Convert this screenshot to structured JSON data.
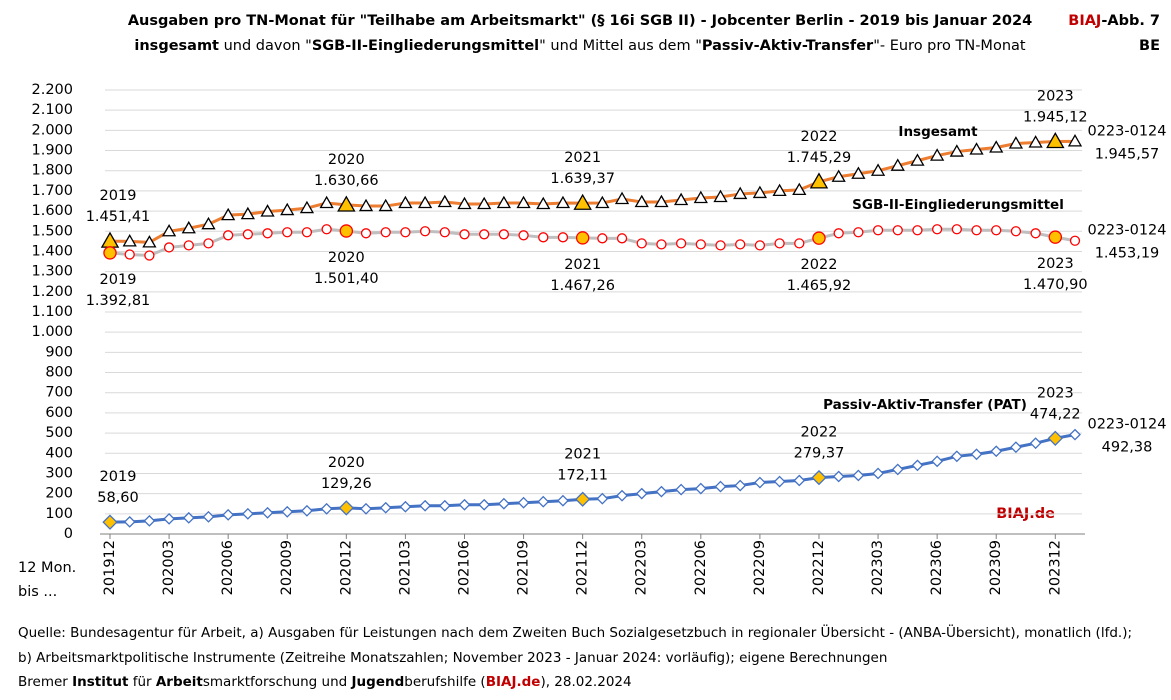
{
  "chart_data": {
    "type": "line",
    "title": "Ausgaben pro TN-Monat für \"Teilhabe am Arbeitsmarkt\" (§ 16i SGB II) - Jobcenter Berlin - 2019 bis Januar 2024",
    "subtitle": [
      {
        "text": "insgesamt",
        "bold": true
      },
      {
        "text": " und davon \"",
        "bold": false
      },
      {
        "text": "SGB-II-Eingliederungsmittel",
        "bold": true
      },
      {
        "text": "\" und Mittel aus dem \"",
        "bold": false
      },
      {
        "text": "Passiv-Aktiv-Transfer",
        "bold": true
      },
      {
        "text": "\"- Euro pro TN-Monat",
        "bold": false
      }
    ],
    "corner": [
      {
        "text": "BIAJ",
        "color": "#c00000"
      },
      {
        "text": "-Abb. 7",
        "color": "#000000"
      }
    ],
    "corner2": "BE",
    "brand": "BIAJ.de",
    "x_label": [
      "12 Mon.",
      "bis ..."
    ],
    "footer": [
      "Quelle: Bundesagentur für Arbeit, a) Ausgaben für Leistungen nach dem Zweiten Buch Sozialgesetzbuch in regionaler Übersicht - (ANBA-Übersicht), monatlich (lfd.);",
      "b) Arbeitsmarktpolitische Instrumente  (Zeitreihe Monatszahlen; November 2023 - Januar 2024: vorläufig); eigene Berechnungen"
    ],
    "footer3": [
      {
        "text": "Bremer ",
        "bold": false,
        "color": "#000000"
      },
      {
        "text": "Institut",
        "bold": true,
        "color": "#000000"
      },
      {
        "text": " für ",
        "bold": false,
        "color": "#000000"
      },
      {
        "text": "Arbeit",
        "bold": true,
        "color": "#000000"
      },
      {
        "text": "smarktforschung und ",
        "bold": false,
        "color": "#000000"
      },
      {
        "text": "Jugend",
        "bold": true,
        "color": "#000000"
      },
      {
        "text": "berufshilfe (",
        "bold": false,
        "color": "#000000"
      },
      {
        "text": "BIAJ.de",
        "bold": true,
        "color": "#c00000"
      },
      {
        "text": "), 28.02.2024",
        "bold": false,
        "color": "#000000"
      }
    ],
    "categories": [
      "201912",
      null,
      null,
      "202003",
      null,
      null,
      "202006",
      null,
      null,
      "202009",
      null,
      null,
      "202012",
      null,
      null,
      "202103",
      null,
      null,
      "202106",
      null,
      null,
      "202109",
      null,
      null,
      "202112",
      null,
      null,
      "202203",
      null,
      null,
      "202206",
      null,
      null,
      "202209",
      null,
      null,
      "202212",
      null,
      null,
      "202303",
      null,
      null,
      "202306",
      null,
      null,
      "202309",
      null,
      null,
      "202312",
      null
    ],
    "ylim": [
      0,
      2200
    ],
    "yticks": [
      0,
      100,
      200,
      300,
      400,
      500,
      600,
      700,
      800,
      900,
      {
        "value": 1000,
        "label": "1.000"
      },
      {
        "value": 1100,
        "label": "1.100"
      },
      {
        "value": 1200,
        "label": "1.200"
      },
      {
        "value": 1300,
        "label": "1.300"
      },
      {
        "value": 1400,
        "label": "1.400"
      },
      {
        "value": 1500,
        "label": "1.500"
      },
      {
        "value": 1600,
        "label": "1.600"
      },
      {
        "value": 1700,
        "label": "1.700"
      },
      {
        "value": 1800,
        "label": "1.800"
      },
      {
        "value": 1900,
        "label": "1.900"
      },
      {
        "value": 2000,
        "label": "2.000"
      },
      {
        "value": 2100,
        "label": "2.100"
      },
      {
        "value": 2200,
        "label": "2.200"
      }
    ],
    "grid": true,
    "highlight_color": "#ffc000",
    "series": [
      {
        "name": "Insgesamt",
        "color": "#ed7d31",
        "marker": "triangle",
        "marker_color": "#000000",
        "values": [
          1451.41,
          1450,
          1445,
          1500,
          1515,
          1535,
          1580,
          1585,
          1598,
          1605,
          1615,
          1640,
          1630.66,
          1625,
          1625,
          1640,
          1640,
          1645,
          1635,
          1635,
          1640,
          1640,
          1635,
          1640,
          1639.37,
          1640,
          1660,
          1645,
          1645,
          1655,
          1665,
          1670,
          1685,
          1690,
          1700,
          1705,
          1745.29,
          1770,
          1785,
          1800,
          1825,
          1850,
          1875,
          1895,
          1905,
          1915,
          1935,
          1940,
          1945.12,
          1945.57
        ],
        "value_labels": [
          [
            "2019",
            "1.451,41"
          ],
          null,
          null,
          null,
          null,
          null,
          null,
          null,
          null,
          null,
          null,
          null,
          [
            "2020",
            "1.630,66"
          ],
          null,
          null,
          null,
          null,
          null,
          null,
          null,
          null,
          null,
          null,
          null,
          [
            "2021",
            "1.639,37"
          ],
          null,
          null,
          null,
          null,
          null,
          null,
          null,
          null,
          null,
          null,
          null,
          [
            "2022",
            "1.745,29"
          ],
          null,
          null,
          null,
          null,
          null,
          null,
          null,
          null,
          null,
          null,
          null,
          [
            "2023",
            "1.945,12"
          ],
          [
            "0223-0124",
            "1.945,57"
          ]
        ]
      },
      {
        "name": "SGB-II-Eingliederungsmittel",
        "color": "#bfbfbf",
        "marker": "circle",
        "marker_color": "#ff0000",
        "values": [
          1392.81,
          1385,
          1380,
          1420,
          1430,
          1440,
          1480,
          1485,
          1490,
          1495,
          1495,
          1510,
          1501.4,
          1490,
          1495,
          1495,
          1500,
          1495,
          1485,
          1485,
          1485,
          1480,
          1470,
          1470,
          1467.26,
          1465,
          1465,
          1440,
          1435,
          1440,
          1435,
          1430,
          1435,
          1430,
          1440,
          1440,
          1465.92,
          1490,
          1495,
          1505,
          1505,
          1505,
          1510,
          1510,
          1505,
          1505,
          1500,
          1490,
          1470.9,
          1453.19
        ],
        "value_labels": [
          [
            "2019",
            "1.392,81"
          ],
          null,
          null,
          null,
          null,
          null,
          null,
          null,
          null,
          null,
          null,
          null,
          [
            "2020",
            "1.501,40"
          ],
          null,
          null,
          null,
          null,
          null,
          null,
          null,
          null,
          null,
          null,
          null,
          [
            "2021",
            "1.467,26"
          ],
          null,
          null,
          null,
          null,
          null,
          null,
          null,
          null,
          null,
          null,
          null,
          [
            "2022",
            "1.465,92"
          ],
          null,
          null,
          null,
          null,
          null,
          null,
          null,
          null,
          null,
          null,
          null,
          [
            "2023",
            "1.470,90"
          ],
          [
            "0223-0124",
            "1.453,19"
          ]
        ]
      },
      {
        "name": "Passiv-Aktiv-Transfer (PAT)",
        "color": "#4472c4",
        "marker": "diamond",
        "marker_color": "#4472c4",
        "values": [
          58.6,
          60,
          65,
          75,
          80,
          85,
          95,
          100,
          105,
          110,
          115,
          125,
          129.26,
          125,
          130,
          135,
          140,
          140,
          145,
          145,
          150,
          155,
          160,
          165,
          172.11,
          175,
          190,
          200,
          210,
          220,
          225,
          235,
          240,
          255,
          260,
          265,
          279.37,
          285,
          290,
          300,
          320,
          340,
          360,
          385,
          395,
          410,
          430,
          450,
          474.22,
          492.38
        ],
        "value_labels": [
          [
            "2019",
            "58,60"
          ],
          null,
          null,
          null,
          null,
          null,
          null,
          null,
          null,
          null,
          null,
          null,
          [
            "2020",
            "129,26"
          ],
          null,
          null,
          null,
          null,
          null,
          null,
          null,
          null,
          null,
          null,
          null,
          [
            "2021",
            "172,11"
          ],
          null,
          null,
          null,
          null,
          null,
          null,
          null,
          null,
          null,
          null,
          null,
          [
            "2022",
            "279,37"
          ],
          null,
          null,
          null,
          null,
          null,
          null,
          null,
          null,
          null,
          null,
          null,
          [
            "2023",
            "474,22"
          ],
          [
            "0223-0124",
            "492,38"
          ]
        ]
      }
    ]
  }
}
